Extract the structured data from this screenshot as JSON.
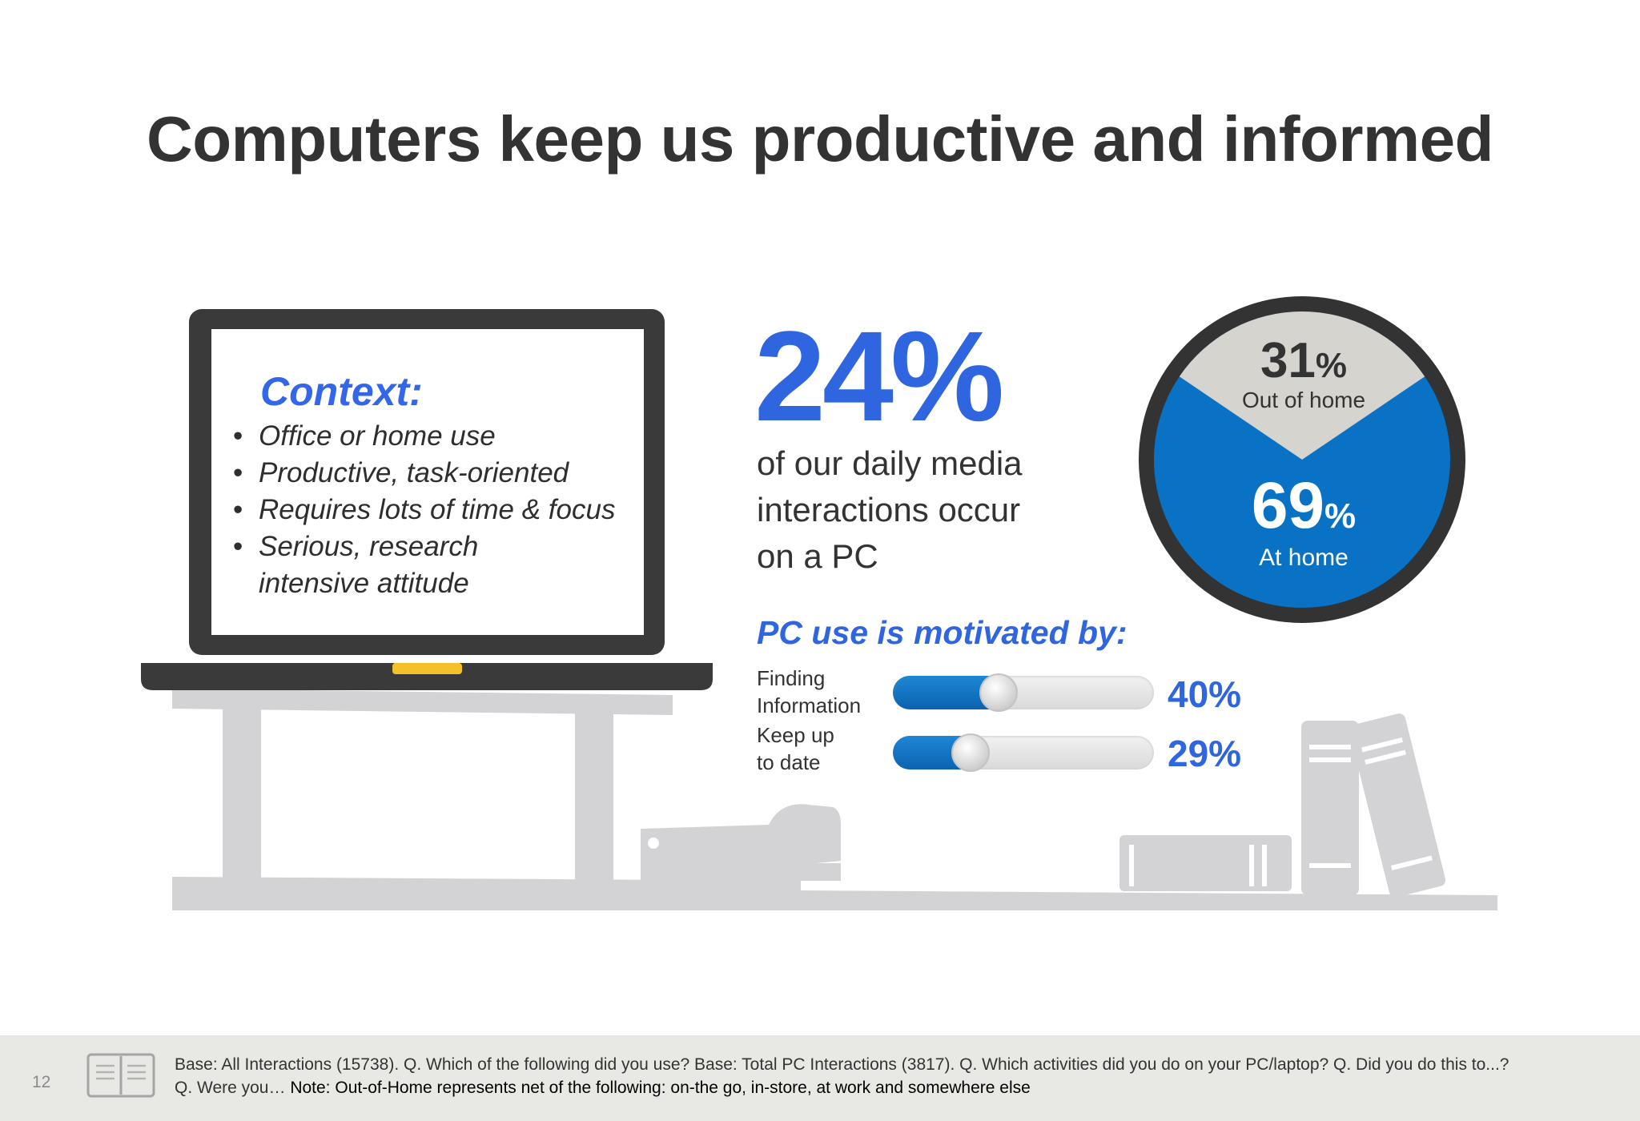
{
  "slide": {
    "title": "Computers keep us productive and informed",
    "page_number": "12"
  },
  "context": {
    "heading": "Context:",
    "bullets": [
      "Office or home use",
      "Productive, task-oriented",
      "Requires lots of time & focus",
      "Serious, research",
      "intensive attitude"
    ]
  },
  "pc_share": {
    "value": "24%",
    "caption": [
      "of our daily media",
      "interactions occur",
      "on a PC"
    ]
  },
  "location_pie": {
    "out_of_home": {
      "value": "31",
      "unit": "%",
      "label": "Out of home",
      "fraction": 0.31,
      "color": "#d5d4cf"
    },
    "at_home": {
      "value": "69",
      "unit": "%",
      "label": "At home",
      "fraction": 0.69,
      "color": "#0a72c4"
    },
    "ring_color": "#333333"
  },
  "motivation": {
    "heading": "PC use is motivated by:",
    "items": [
      {
        "label": [
          "Finding",
          "Information"
        ],
        "value": "40%",
        "fraction": 0.4
      },
      {
        "label": [
          "Keep up",
          "to date"
        ],
        "value": "29%",
        "fraction": 0.29
      }
    ]
  },
  "footer": {
    "note_prefix": "Base: All Interactions (15738). Q. Which of the following did you use? Base: Total PC Interactions (3817).  Q. Which activities did you do on your PC/laptop?  Q. Did you do this to...?",
    "note_line2_prefix": "Q. Were you… ",
    "note_line2_main": "Note: Out-of-Home represents net of the following: on-the go, in-store, at work and somewhere else"
  },
  "colors": {
    "accent_blue": "#2f66e0",
    "bar_blue": "#0b63b0",
    "laptop_dark": "#3a3a3a",
    "desk_gray": "#d3d2d4",
    "laptop_led": "#f5c12a"
  }
}
